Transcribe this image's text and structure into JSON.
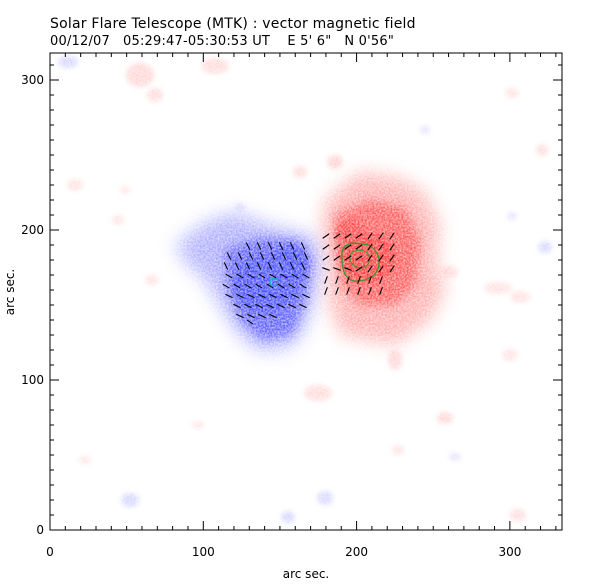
{
  "header": {
    "title": "Solar Flare Telescope (MTK) : vector magnetic field",
    "date": "00/12/07",
    "time_range": "05:29:47-05:30:53 UT",
    "lon": "E 5' 6\"",
    "lat": "N 0'56\""
  },
  "axes": {
    "xlabel": "arc sec.",
    "ylabel": "arc sec.",
    "xrange": [
      0,
      334
    ],
    "yrange": [
      0,
      318
    ],
    "xticks": [
      "0",
      "100",
      "200",
      "300"
    ],
    "yticks": [
      "0",
      "100",
      "200",
      "300"
    ],
    "xtick_values": [
      0,
      100,
      200,
      300
    ],
    "ytick_values": [
      0,
      100,
      200,
      300
    ]
  },
  "colors": {
    "positive_polarity": "#ff3c3c",
    "negative_polarity": "#3c46ff",
    "vector_arrows": "#000000",
    "contour_green": "#3a9a2a",
    "contour_cyan": "#00c0c0"
  },
  "regions": {
    "positive_polarity_center": [
      208,
      172
    ],
    "negative_polarity_center": [
      148,
      160
    ]
  }
}
